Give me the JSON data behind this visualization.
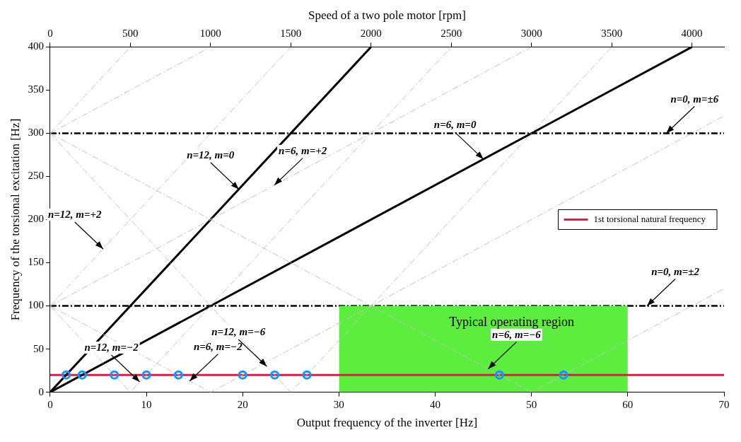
{
  "chart_data": {
    "type": "line",
    "xlabel": "Output frequency of the inverter [Hz]",
    "ylabel": "Frequency of the torsional excitation [Hz]",
    "x2label": "Speed of a two pole motor [rpm]",
    "xlim": [
      0,
      70
    ],
    "xticks": [
      0,
      10,
      20,
      30,
      40,
      50,
      60,
      70
    ],
    "x2lim": [
      0,
      4200
    ],
    "x2ticks": [
      0,
      500,
      1000,
      1500,
      2000,
      2500,
      3000,
      3500,
      4000
    ],
    "ylim": [
      0,
      400
    ],
    "yticks": [
      0,
      50,
      100,
      150,
      200,
      250,
      300,
      350,
      400
    ],
    "grid": false,
    "legend": "center right",
    "series": [
      {
        "type": "area",
        "name": "Typical operating region",
        "color": "#5ced3f",
        "x": [
          30,
          60
        ],
        "values": [
          100,
          100
        ]
      },
      {
        "type": "line",
        "color": "#c0c0c0",
        "line_style": "dashed",
        "x": [
          0,
          8.33
        ],
        "values": [
          300,
          400
        ]
      },
      {
        "type": "line",
        "color": "#c0c0c0",
        "line_style": "dashed",
        "x": [
          0,
          16.67
        ],
        "values": [
          300,
          400
        ]
      },
      {
        "type": "line",
        "color": "#c0c0c0",
        "line_style": "dashed",
        "x": [
          0,
          25
        ],
        "values": [
          100,
          400
        ]
      },
      {
        "type": "line",
        "color": "#c0c0c0",
        "line_style": "dashed",
        "x": [
          0,
          50
        ],
        "values": [
          100,
          400
        ]
      },
      {
        "type": "line",
        "color": "#c0c0c0",
        "line_style": "dashed",
        "x": [
          0,
          8.33,
          41.67
        ],
        "values": [
          100,
          0,
          400
        ]
      },
      {
        "type": "line",
        "color": "#c0c0c0",
        "line_style": "dashed",
        "x": [
          0,
          16.67,
          70
        ],
        "values": [
          100,
          0,
          320
        ]
      },
      {
        "type": "line",
        "color": "#c0c0c0",
        "line_style": "dashed",
        "x": [
          0,
          25,
          58.33
        ],
        "values": [
          300,
          0,
          400
        ]
      },
      {
        "type": "line",
        "color": "#c0c0c0",
        "line_style": "dashed",
        "x": [
          0,
          50,
          70
        ],
        "values": [
          300,
          0,
          120
        ]
      },
      {
        "type": "line",
        "color": "#000000",
        "line_style": "solid",
        "x": [
          0,
          33.33
        ],
        "values": [
          0,
          400
        ]
      },
      {
        "type": "line",
        "color": "#000000",
        "line_style": "solid",
        "x": [
          0,
          66.67
        ],
        "values": [
          0,
          400
        ]
      },
      {
        "type": "line",
        "name": "1st torsional natural frequency",
        "color": "#e8174a",
        "line_style": "solid",
        "x": [
          0,
          70
        ],
        "values": [
          20,
          20
        ]
      },
      {
        "type": "scatter",
        "color": "#1e90ff",
        "marker": "circle",
        "x": [
          1.67,
          3.33,
          6.67,
          10,
          13.33,
          20,
          23.33,
          26.67,
          46.67,
          53.33
        ],
        "values": [
          20,
          20,
          20,
          20,
          20,
          20,
          20,
          20,
          20,
          20
        ]
      }
    ],
    "ref_lines": [
      {
        "axis": "y",
        "value": 300,
        "color": "#000000",
        "line_style": "dashed"
      },
      {
        "axis": "y",
        "value": 100,
        "color": "#000000",
        "line_style": "dashed"
      }
    ],
    "annotations": [
      {
        "text": "n=12, m=0",
        "x": 19.6,
        "y": 235
      },
      {
        "text": "n=6, m=+2",
        "x": 23.3,
        "y": 240
      },
      {
        "text": "n=6, m=0",
        "x": 45,
        "y": 270
      },
      {
        "text": "n=0, m=±6",
        "x": 64,
        "y": 300
      },
      {
        "text": "n=12, m=+2",
        "x": 5.5,
        "y": 166
      },
      {
        "text": "n=0, m=±2",
        "x": 62,
        "y": 100
      },
      {
        "text": "n=12, m=−2",
        "x": 9.3,
        "y": 12
      },
      {
        "text": "n=6, m=−2",
        "x": 14.5,
        "y": 13
      },
      {
        "text": "n=12, m=−6",
        "x": 22.5,
        "y": 30
      },
      {
        "text": "n=6, m=−6",
        "x": 45.5,
        "y": 27
      }
    ]
  }
}
